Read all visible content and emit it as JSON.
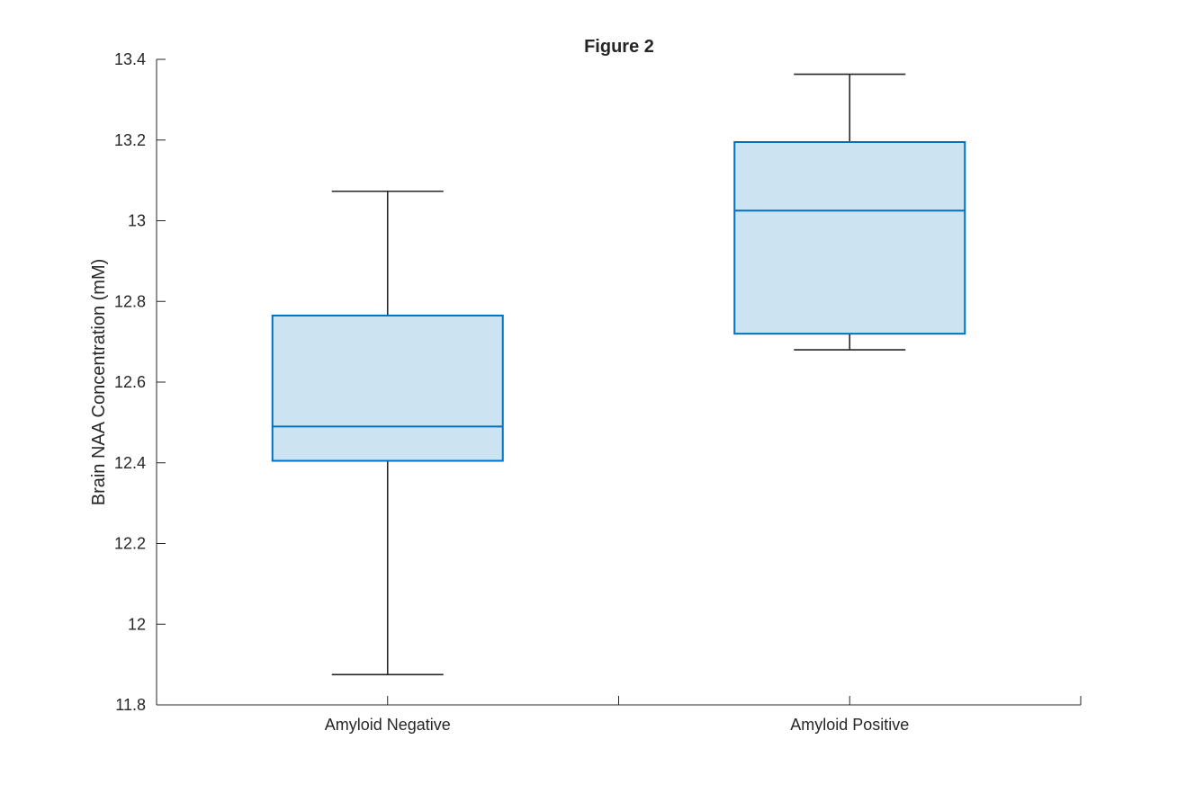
{
  "chart_data": {
    "type": "box",
    "title": "Figure 2",
    "xlabel": "",
    "ylabel": "Brain NAA Concentration (mM)",
    "ylim": [
      11.8,
      13.4
    ],
    "yticks": [
      "11.8",
      "12",
      "12.2",
      "12.4",
      "12.6",
      "12.8",
      "13",
      "13.2",
      "13.4"
    ],
    "categories": [
      "Amyloid Negative",
      "Amyloid Positive"
    ],
    "boxes": [
      {
        "category": "Amyloid Negative",
        "whisker_low": 11.875,
        "q1": 12.405,
        "median": 12.49,
        "q3": 12.765,
        "whisker_high": 13.073
      },
      {
        "category": "Amyloid Positive",
        "whisker_low": 12.68,
        "q1": 12.72,
        "median": 13.025,
        "q3": 13.195,
        "whisker_high": 13.363
      }
    ],
    "grid": false,
    "colors": {
      "box_edge": "#0072BD",
      "box_fill": "#CCE3F1",
      "whisker": "#262626",
      "axis": "#262626"
    }
  }
}
